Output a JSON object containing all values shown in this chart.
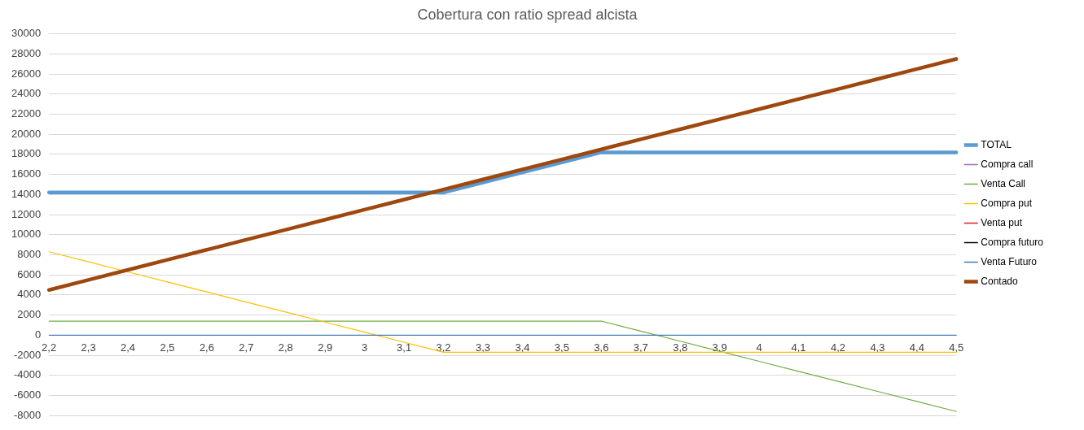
{
  "chart_data": {
    "type": "line",
    "title": "Cobertura con ratio spread alcista",
    "categories": [
      "2,2",
      "2,3",
      "2,4",
      "2,5",
      "2,6",
      "2,7",
      "2,8",
      "2,9",
      "3",
      "3,1",
      "3,2",
      "3,3",
      "3,4",
      "3,5",
      "3,6",
      "3,7",
      "3,8",
      "3,9",
      "4",
      "4,1",
      "4,2",
      "4,3",
      "4,4",
      "4,5"
    ],
    "series": [
      {
        "name": "TOTAL",
        "color": "#5b9bd5",
        "values": [
          14200,
          14200,
          14200,
          14200,
          14200,
          14200,
          14200,
          14200,
          14200,
          14200,
          14200,
          15200,
          16200,
          17200,
          18200,
          18200,
          18200,
          18200,
          18200,
          18200,
          18200,
          18200,
          18200,
          18200
        ]
      },
      {
        "name": "Compra call",
        "color": "#a569bd",
        "values": [
          null,
          null,
          null,
          null,
          null,
          null,
          null,
          null,
          null,
          null,
          null,
          null,
          null,
          null,
          null,
          null,
          null,
          null,
          null,
          null,
          null,
          null,
          null,
          null
        ]
      },
      {
        "name": "Venta Call",
        "color": "#70ad47",
        "values": [
          1400,
          1400,
          1400,
          1400,
          1400,
          1400,
          1400,
          1400,
          1400,
          1400,
          1400,
          1400,
          1400,
          1400,
          1400,
          400,
          -600,
          -1600,
          -2600,
          -3600,
          -4600,
          -5600,
          -6600,
          -7600
        ]
      },
      {
        "name": "Compra put",
        "color": "#ffc000",
        "values": [
          8300,
          7300,
          6300,
          5300,
          4300,
          3300,
          2300,
          1300,
          300,
          -700,
          -1700,
          -1700,
          -1700,
          -1700,
          -1700,
          -1700,
          -1700,
          -1700,
          -1700,
          -1700,
          -1700,
          -1700,
          -1700,
          -1700
        ]
      },
      {
        "name": "Venta put",
        "color": "#e02020",
        "values": [
          null,
          null,
          null,
          null,
          null,
          null,
          null,
          null,
          null,
          null,
          null,
          null,
          null,
          null,
          null,
          null,
          null,
          null,
          null,
          null,
          null,
          null,
          null,
          null
        ]
      },
      {
        "name": "Compra futuro",
        "color": "#000000",
        "values": [
          null,
          null,
          null,
          null,
          null,
          null,
          null,
          null,
          null,
          null,
          null,
          null,
          null,
          null,
          null,
          null,
          null,
          null,
          null,
          null,
          null,
          null,
          null,
          null
        ]
      },
      {
        "name": "Venta Futuro",
        "color": "#4a7ab0",
        "values": [
          0,
          0,
          0,
          0,
          0,
          0,
          0,
          0,
          0,
          0,
          0,
          0,
          0,
          0,
          0,
          0,
          0,
          0,
          0,
          0,
          0,
          0,
          0,
          0
        ]
      },
      {
        "name": "Contado",
        "color": "#9e480e",
        "values": [
          4500,
          5500,
          6500,
          7500,
          8500,
          9500,
          10500,
          11500,
          12500,
          13500,
          14500,
          15500,
          16500,
          17500,
          18500,
          19500,
          20500,
          21500,
          22500,
          23500,
          24500,
          25500,
          26500,
          27500
        ]
      }
    ],
    "ylim": [
      -8000,
      30000
    ],
    "yticks": [
      -8000,
      -6000,
      -4000,
      -2000,
      0,
      2000,
      4000,
      6000,
      8000,
      10000,
      12000,
      14000,
      16000,
      18000,
      20000,
      22000,
      24000,
      26000,
      28000,
      30000
    ],
    "grid": "y",
    "legend": "right",
    "marker": "none",
    "line_style": "solid"
  }
}
